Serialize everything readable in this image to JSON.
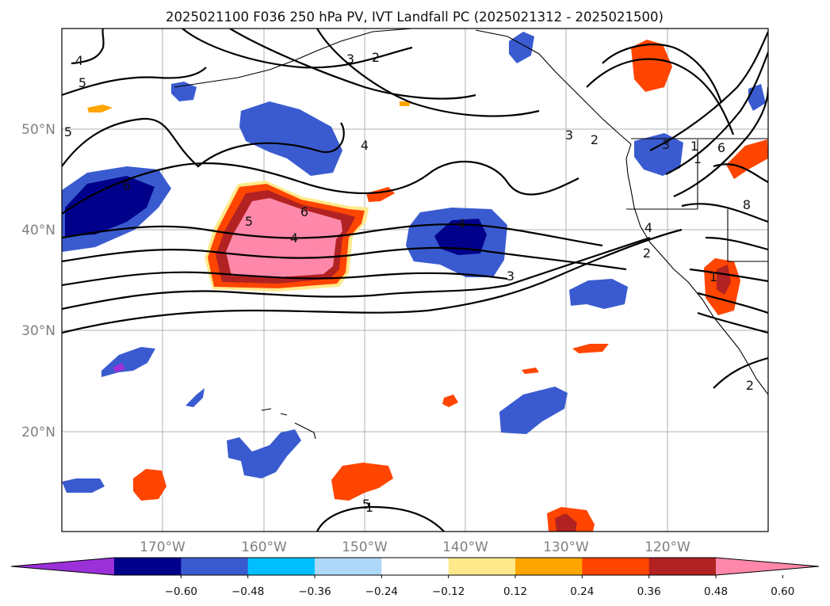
{
  "title": "2025021100 F036 250 hPa PV, IVT Landfall PC (2025021312 - 2025021500)",
  "map": {
    "lat_labels": [
      "50°N",
      "40°N",
      "30°N",
      "20°N"
    ],
    "lon_labels": [
      "170°W",
      "160°W",
      "150°W",
      "140°W",
      "130°W",
      "120°W"
    ],
    "projection": "equirectangular",
    "grid": true
  },
  "colorbar": {
    "ticks": [
      "−0.60",
      "−0.48",
      "−0.36",
      "−0.24",
      "−0.12",
      "0.12",
      "0.24",
      "0.36",
      "0.48",
      "0.60"
    ],
    "colors": [
      "#9b30d9",
      "#00008b",
      "#3a5bcf",
      "#00bfff",
      "#add8f7",
      "#ffffff",
      "#ffe98a",
      "#ffa500",
      "#ff4500",
      "#b22222",
      "#ff88aa"
    ],
    "extend": "both"
  },
  "contour_labels": [
    "4",
    "5",
    "3",
    "2",
    "3",
    "2",
    "4",
    "5",
    "6",
    "6",
    "4",
    "5",
    "4",
    "3",
    "1",
    "3",
    "2",
    "1",
    "6",
    "8",
    "4",
    "2",
    "1",
    "1",
    "5"
  ]
}
